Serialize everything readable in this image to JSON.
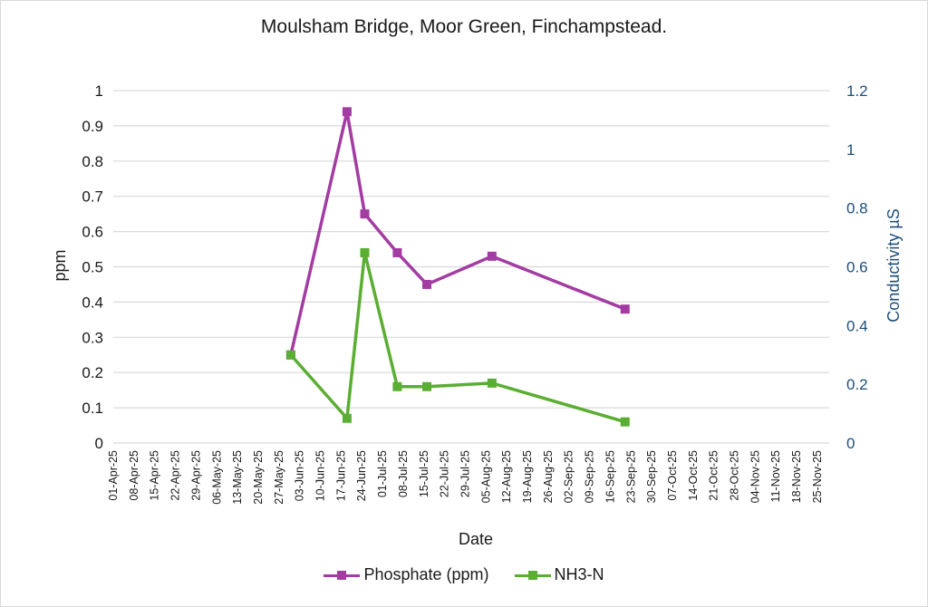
{
  "chart_data": {
    "type": "line",
    "title": "Moulsham Bridge, Moor Green, Finchampstead.",
    "xlabel": "Date",
    "ylabel": "ppm",
    "y2label": "Conductivity µS",
    "ylim": [
      0,
      1
    ],
    "y2lim": [
      0,
      1.2
    ],
    "yticks": [
      "0",
      "0.1",
      "0.2",
      "0.3",
      "0.4",
      "0.5",
      "0.6",
      "0.7",
      "0.8",
      "0.9",
      "1"
    ],
    "y2ticks": [
      "0",
      "0.2",
      "0.4",
      "0.6",
      "0.8",
      "1",
      "1.2"
    ],
    "x_tick_labels": [
      "01-Apr-25",
      "08-Apr-25",
      "15-Apr-25",
      "22-Apr-25",
      "29-Apr-25",
      "06-May-25",
      "13-May-25",
      "20-May-25",
      "27-May-25",
      "03-Jun-25",
      "10-Jun-25",
      "17-Jun-25",
      "24-Jun-25",
      "01-Jul-25",
      "08-Jul-25",
      "15-Jul-25",
      "22-Jul-25",
      "29-Jul-25",
      "05-Aug-25",
      "12-Aug-25",
      "19-Aug-25",
      "26-Aug-25",
      "02-Sep-25",
      "09-Sep-25",
      "16-Sep-25",
      "23-Sep-25",
      "30-Sep-25",
      "07-Oct-25",
      "14-Oct-25",
      "21-Oct-25",
      "28-Oct-25",
      "04-Nov-25",
      "11-Nov-25",
      "18-Nov-25",
      "25-Nov-25"
    ],
    "grid": true,
    "legend_position": "bottom",
    "series": [
      {
        "name": "Phosphate (ppm)",
        "color": "#a33ca2",
        "axis": "left",
        "x": [
          "2025-05-31",
          "2025-06-19",
          "2025-06-25",
          "2025-07-06",
          "2025-07-16",
          "2025-08-07",
          "2025-09-21"
        ],
        "y": [
          0.25,
          0.94,
          0.65,
          0.54,
          0.45,
          0.53,
          0.38
        ]
      },
      {
        "name": "NH3-N",
        "color": "#5aae32",
        "axis": "left",
        "x": [
          "2025-05-31",
          "2025-06-19",
          "2025-06-25",
          "2025-07-06",
          "2025-07-16",
          "2025-08-07",
          "2025-09-21"
        ],
        "y": [
          0.25,
          0.07,
          0.54,
          0.16,
          0.16,
          0.17,
          0.06
        ]
      }
    ]
  }
}
